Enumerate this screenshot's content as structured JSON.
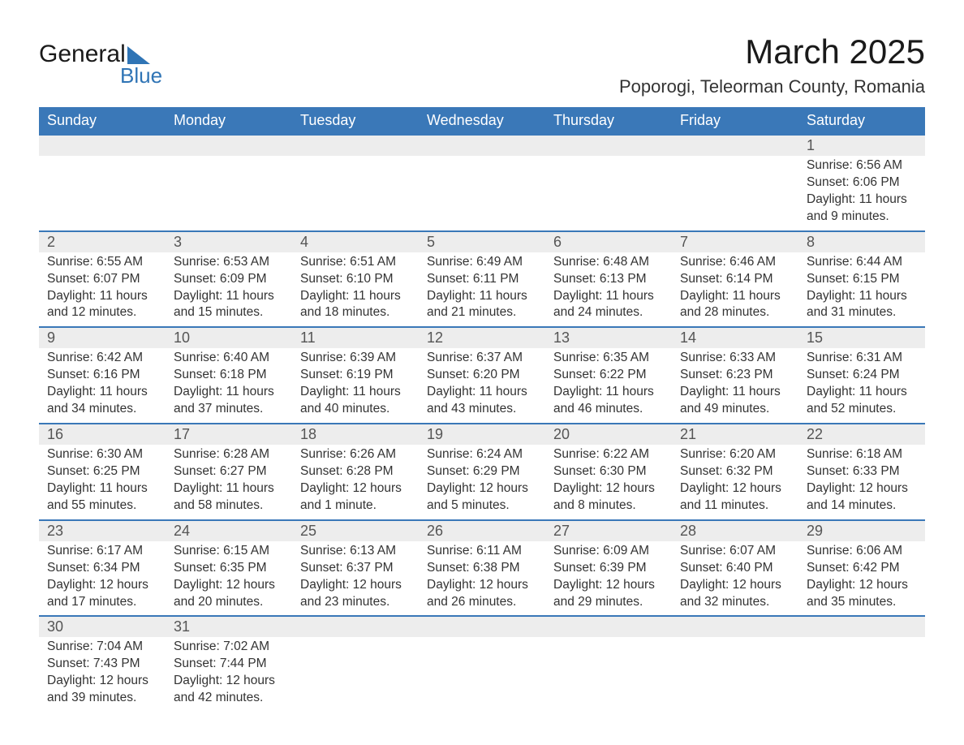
{
  "logo": {
    "word1": "General",
    "word2": "Blue"
  },
  "title": "March 2025",
  "location": "Poporogi, Teleorman County, Romania",
  "colors": {
    "header_bg": "#3a78b8",
    "header_text": "#ffffff",
    "daynum_bg": "#ededed",
    "row_divider": "#3a78b8",
    "body_text": "#333333",
    "logo_accent": "#2f74b5"
  },
  "weekdays": [
    "Sunday",
    "Monday",
    "Tuesday",
    "Wednesday",
    "Thursday",
    "Friday",
    "Saturday"
  ],
  "labels": {
    "sunrise": "Sunrise:",
    "sunset": "Sunset:",
    "daylight": "Daylight:"
  },
  "weeks": [
    [
      null,
      null,
      null,
      null,
      null,
      null,
      {
        "n": "1",
        "sr": "6:56 AM",
        "ss": "6:06 PM",
        "dl1": "11 hours",
        "dl2": "and 9 minutes."
      }
    ],
    [
      {
        "n": "2",
        "sr": "6:55 AM",
        "ss": "6:07 PM",
        "dl1": "11 hours",
        "dl2": "and 12 minutes."
      },
      {
        "n": "3",
        "sr": "6:53 AM",
        "ss": "6:09 PM",
        "dl1": "11 hours",
        "dl2": "and 15 minutes."
      },
      {
        "n": "4",
        "sr": "6:51 AM",
        "ss": "6:10 PM",
        "dl1": "11 hours",
        "dl2": "and 18 minutes."
      },
      {
        "n": "5",
        "sr": "6:49 AM",
        "ss": "6:11 PM",
        "dl1": "11 hours",
        "dl2": "and 21 minutes."
      },
      {
        "n": "6",
        "sr": "6:48 AM",
        "ss": "6:13 PM",
        "dl1": "11 hours",
        "dl2": "and 24 minutes."
      },
      {
        "n": "7",
        "sr": "6:46 AM",
        "ss": "6:14 PM",
        "dl1": "11 hours",
        "dl2": "and 28 minutes."
      },
      {
        "n": "8",
        "sr": "6:44 AM",
        "ss": "6:15 PM",
        "dl1": "11 hours",
        "dl2": "and 31 minutes."
      }
    ],
    [
      {
        "n": "9",
        "sr": "6:42 AM",
        "ss": "6:16 PM",
        "dl1": "11 hours",
        "dl2": "and 34 minutes."
      },
      {
        "n": "10",
        "sr": "6:40 AM",
        "ss": "6:18 PM",
        "dl1": "11 hours",
        "dl2": "and 37 minutes."
      },
      {
        "n": "11",
        "sr": "6:39 AM",
        "ss": "6:19 PM",
        "dl1": "11 hours",
        "dl2": "and 40 minutes."
      },
      {
        "n": "12",
        "sr": "6:37 AM",
        "ss": "6:20 PM",
        "dl1": "11 hours",
        "dl2": "and 43 minutes."
      },
      {
        "n": "13",
        "sr": "6:35 AM",
        "ss": "6:22 PM",
        "dl1": "11 hours",
        "dl2": "and 46 minutes."
      },
      {
        "n": "14",
        "sr": "6:33 AM",
        "ss": "6:23 PM",
        "dl1": "11 hours",
        "dl2": "and 49 minutes."
      },
      {
        "n": "15",
        "sr": "6:31 AM",
        "ss": "6:24 PM",
        "dl1": "11 hours",
        "dl2": "and 52 minutes."
      }
    ],
    [
      {
        "n": "16",
        "sr": "6:30 AM",
        "ss": "6:25 PM",
        "dl1": "11 hours",
        "dl2": "and 55 minutes."
      },
      {
        "n": "17",
        "sr": "6:28 AM",
        "ss": "6:27 PM",
        "dl1": "11 hours",
        "dl2": "and 58 minutes."
      },
      {
        "n": "18",
        "sr": "6:26 AM",
        "ss": "6:28 PM",
        "dl1": "12 hours",
        "dl2": "and 1 minute."
      },
      {
        "n": "19",
        "sr": "6:24 AM",
        "ss": "6:29 PM",
        "dl1": "12 hours",
        "dl2": "and 5 minutes."
      },
      {
        "n": "20",
        "sr": "6:22 AM",
        "ss": "6:30 PM",
        "dl1": "12 hours",
        "dl2": "and 8 minutes."
      },
      {
        "n": "21",
        "sr": "6:20 AM",
        "ss": "6:32 PM",
        "dl1": "12 hours",
        "dl2": "and 11 minutes."
      },
      {
        "n": "22",
        "sr": "6:18 AM",
        "ss": "6:33 PM",
        "dl1": "12 hours",
        "dl2": "and 14 minutes."
      }
    ],
    [
      {
        "n": "23",
        "sr": "6:17 AM",
        "ss": "6:34 PM",
        "dl1": "12 hours",
        "dl2": "and 17 minutes."
      },
      {
        "n": "24",
        "sr": "6:15 AM",
        "ss": "6:35 PM",
        "dl1": "12 hours",
        "dl2": "and 20 minutes."
      },
      {
        "n": "25",
        "sr": "6:13 AM",
        "ss": "6:37 PM",
        "dl1": "12 hours",
        "dl2": "and 23 minutes."
      },
      {
        "n": "26",
        "sr": "6:11 AM",
        "ss": "6:38 PM",
        "dl1": "12 hours",
        "dl2": "and 26 minutes."
      },
      {
        "n": "27",
        "sr": "6:09 AM",
        "ss": "6:39 PM",
        "dl1": "12 hours",
        "dl2": "and 29 minutes."
      },
      {
        "n": "28",
        "sr": "6:07 AM",
        "ss": "6:40 PM",
        "dl1": "12 hours",
        "dl2": "and 32 minutes."
      },
      {
        "n": "29",
        "sr": "6:06 AM",
        "ss": "6:42 PM",
        "dl1": "12 hours",
        "dl2": "and 35 minutes."
      }
    ],
    [
      {
        "n": "30",
        "sr": "7:04 AM",
        "ss": "7:43 PM",
        "dl1": "12 hours",
        "dl2": "and 39 minutes."
      },
      {
        "n": "31",
        "sr": "7:02 AM",
        "ss": "7:44 PM",
        "dl1": "12 hours",
        "dl2": "and 42 minutes."
      },
      null,
      null,
      null,
      null,
      null
    ]
  ]
}
